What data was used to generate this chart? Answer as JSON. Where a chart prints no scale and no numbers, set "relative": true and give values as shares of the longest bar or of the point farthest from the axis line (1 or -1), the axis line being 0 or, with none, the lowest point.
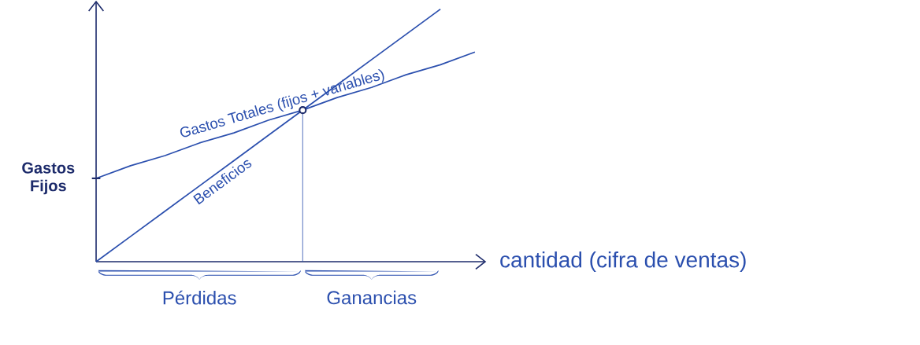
{
  "chart_data": {
    "type": "line",
    "relative": true,
    "xlabel": "cantidad (cifra de ventas)",
    "categories": [
      null,
      null,
      null,
      null,
      null,
      null,
      null,
      null,
      null,
      null,
      null,
      null
    ],
    "series": [
      {
        "name": "Gastos Totales (fijos + variables)",
        "color": "#2b4fae",
        "values": [
          0.33,
          0.38,
          0.42,
          0.47,
          0.51,
          0.56,
          0.6,
          0.65,
          0.69,
          0.74,
          0.78,
          0.83
        ]
      },
      {
        "name": "Beneficios",
        "color": "#2b4fae",
        "values": [
          0,
          0.1,
          0.2,
          0.3,
          0.4,
          0.5,
          0.6,
          0.7,
          0.8,
          0.9,
          1,
          null
        ]
      }
    ],
    "annotations": [
      "Gastos Fijos",
      "Pérdidas",
      "Ganancias"
    ]
  }
}
